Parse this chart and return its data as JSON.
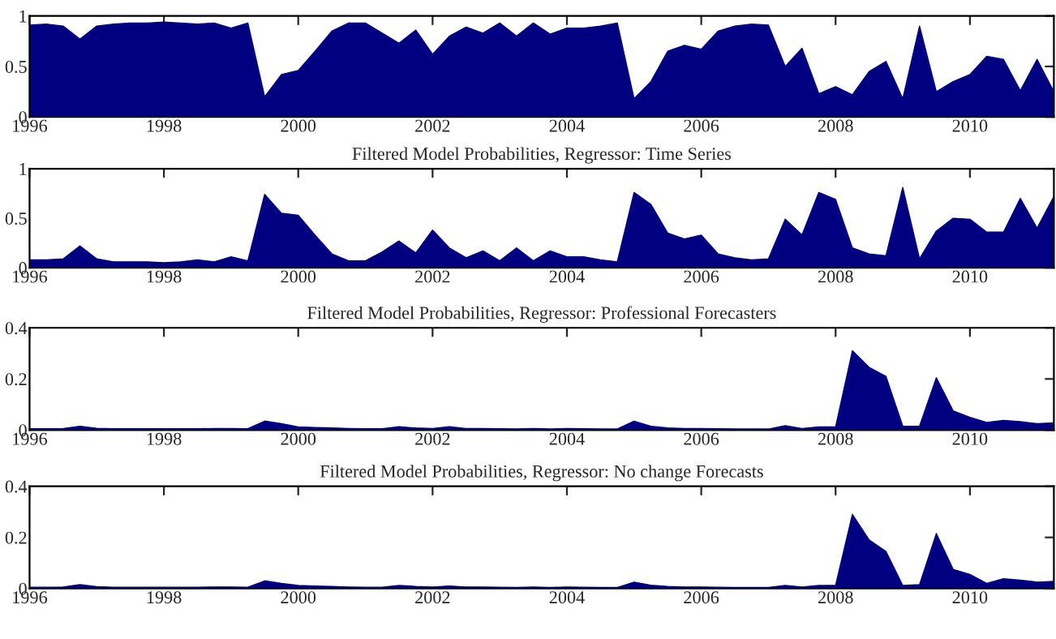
{
  "chart_data": [
    {
      "type": "area",
      "x": [
        1996.0,
        1996.25,
        1996.5,
        1996.75,
        1997.0,
        1997.25,
        1997.5,
        1997.75,
        1998.0,
        1998.25,
        1998.5,
        1998.75,
        1999.0,
        1999.25,
        1999.5,
        1999.75,
        2000.0,
        2000.25,
        2000.5,
        2000.75,
        2001.0,
        2001.25,
        2001.5,
        2001.75,
        2002.0,
        2002.25,
        2002.5,
        2002.75,
        2003.0,
        2003.25,
        2003.5,
        2003.75,
        2004.0,
        2004.25,
        2004.5,
        2004.75,
        2005.0,
        2005.25,
        2005.5,
        2005.75,
        2006.0,
        2006.25,
        2006.5,
        2006.75,
        2007.0,
        2007.25,
        2007.5,
        2007.75,
        2008.0,
        2008.25,
        2008.5,
        2008.75,
        2009.0,
        2009.25,
        2009.5,
        2009.75,
        2010.0,
        2010.25,
        2010.5,
        2010.75,
        2011.0,
        2011.25
      ],
      "series": [
        {
          "color": "#000080",
          "values": [
            0.91,
            0.92,
            0.9,
            0.77,
            0.9,
            0.92,
            0.93,
            0.93,
            0.94,
            0.93,
            0.92,
            0.93,
            0.88,
            0.93,
            0.2,
            0.42,
            0.46,
            0.65,
            0.85,
            0.93,
            0.93,
            0.83,
            0.73,
            0.86,
            0.62,
            0.8,
            0.89,
            0.83,
            0.93,
            0.8,
            0.93,
            0.82,
            0.88,
            0.88,
            0.9,
            0.93,
            0.18,
            0.35,
            0.65,
            0.71,
            0.67,
            0.85,
            0.9,
            0.92,
            0.91,
            0.5,
            0.68,
            0.23,
            0.3,
            0.22,
            0.45,
            0.55,
            0.18,
            0.9,
            0.25,
            0.35,
            0.42,
            0.6,
            0.57,
            0.26,
            0.57,
            0.25
          ]
        }
      ],
      "xlim": [
        1996,
        2011.25
      ],
      "xticks": [
        1996,
        1998,
        2000,
        2002,
        2004,
        2006,
        2008,
        2010
      ],
      "ylim": [
        0,
        1
      ],
      "yticks": [
        0,
        0.5,
        1
      ]
    },
    {
      "type": "area",
      "title": "Filtered Model Probabilities, Regressor: Time Series",
      "x": [
        1996.0,
        1996.25,
        1996.5,
        1996.75,
        1997.0,
        1997.25,
        1997.5,
        1997.75,
        1998.0,
        1998.25,
        1998.5,
        1998.75,
        1999.0,
        1999.25,
        1999.5,
        1999.75,
        2000.0,
        2000.25,
        2000.5,
        2000.75,
        2001.0,
        2001.25,
        2001.5,
        2001.75,
        2002.0,
        2002.25,
        2002.5,
        2002.75,
        2003.0,
        2003.25,
        2003.5,
        2003.75,
        2004.0,
        2004.25,
        2004.5,
        2004.75,
        2005.0,
        2005.25,
        2005.5,
        2005.75,
        2006.0,
        2006.25,
        2006.5,
        2006.75,
        2007.0,
        2007.25,
        2007.5,
        2007.75,
        2008.0,
        2008.25,
        2008.5,
        2008.75,
        2009.0,
        2009.25,
        2009.5,
        2009.75,
        2010.0,
        2010.25,
        2010.5,
        2010.75,
        2011.0,
        2011.25
      ],
      "series": [
        {
          "color": "#000080",
          "values": [
            0.08,
            0.08,
            0.09,
            0.22,
            0.09,
            0.06,
            0.06,
            0.06,
            0.05,
            0.06,
            0.08,
            0.06,
            0.11,
            0.07,
            0.74,
            0.55,
            0.53,
            0.33,
            0.14,
            0.07,
            0.07,
            0.16,
            0.27,
            0.15,
            0.38,
            0.2,
            0.1,
            0.17,
            0.07,
            0.2,
            0.07,
            0.17,
            0.11,
            0.11,
            0.08,
            0.06,
            0.76,
            0.64,
            0.35,
            0.29,
            0.33,
            0.14,
            0.1,
            0.08,
            0.09,
            0.49,
            0.33,
            0.76,
            0.69,
            0.2,
            0.14,
            0.12,
            0.81,
            0.09,
            0.37,
            0.5,
            0.49,
            0.36,
            0.36,
            0.7,
            0.4,
            0.72
          ]
        }
      ],
      "xlim": [
        1996,
        2011.25
      ],
      "xticks": [
        1996,
        1998,
        2000,
        2002,
        2004,
        2006,
        2008,
        2010
      ],
      "ylim": [
        0,
        1
      ],
      "yticks": [
        0,
        0.5,
        1
      ]
    },
    {
      "type": "area",
      "title": "Filtered Model Probabilities, Regressor: Professional Forecasters",
      "x": [
        1996.0,
        1996.25,
        1996.5,
        1996.75,
        1997.0,
        1997.25,
        1997.5,
        1997.75,
        1998.0,
        1998.25,
        1998.5,
        1998.75,
        1999.0,
        1999.25,
        1999.5,
        1999.75,
        2000.0,
        2000.25,
        2000.5,
        2000.75,
        2001.0,
        2001.25,
        2001.5,
        2001.75,
        2002.0,
        2002.25,
        2002.5,
        2002.75,
        2003.0,
        2003.25,
        2003.5,
        2003.75,
        2004.0,
        2004.25,
        2004.5,
        2004.75,
        2005.0,
        2005.25,
        2005.5,
        2005.75,
        2006.0,
        2006.25,
        2006.5,
        2006.75,
        2007.0,
        2007.25,
        2007.5,
        2007.75,
        2008.0,
        2008.25,
        2008.5,
        2008.75,
        2009.0,
        2009.25,
        2009.5,
        2009.75,
        2010.0,
        2010.25,
        2010.5,
        2010.75,
        2011.0,
        2011.25
      ],
      "series": [
        {
          "color": "#000080",
          "values": [
            0.005,
            0.005,
            0.006,
            0.015,
            0.007,
            0.005,
            0.005,
            0.005,
            0.005,
            0.005,
            0.005,
            0.006,
            0.006,
            0.005,
            0.035,
            0.025,
            0.012,
            0.01,
            0.008,
            0.006,
            0.005,
            0.005,
            0.013,
            0.008,
            0.006,
            0.013,
            0.006,
            0.006,
            0.005,
            0.004,
            0.006,
            0.004,
            0.006,
            0.005,
            0.004,
            0.004,
            0.035,
            0.015,
            0.008,
            0.006,
            0.006,
            0.005,
            0.004,
            0.004,
            0.004,
            0.017,
            0.006,
            0.012,
            0.012,
            0.31,
            0.245,
            0.21,
            0.015,
            0.015,
            0.205,
            0.075,
            0.05,
            0.03,
            0.038,
            0.033,
            0.025,
            0.028
          ]
        }
      ],
      "xlim": [
        1996,
        2011.25
      ],
      "xticks": [
        1996,
        1998,
        2000,
        2002,
        2004,
        2006,
        2008,
        2010
      ],
      "ylim": [
        0,
        0.4
      ],
      "yticks": [
        0,
        0.2,
        0.4
      ]
    },
    {
      "type": "area",
      "title": "Filtered Model Probabilities, Regressor: No change Forecasts",
      "x": [
        1996.0,
        1996.25,
        1996.5,
        1996.75,
        1997.0,
        1997.25,
        1997.5,
        1997.75,
        1998.0,
        1998.25,
        1998.5,
        1998.75,
        1999.0,
        1999.25,
        1999.5,
        1999.75,
        2000.0,
        2000.25,
        2000.5,
        2000.75,
        2001.0,
        2001.25,
        2001.5,
        2001.75,
        2002.0,
        2002.25,
        2002.5,
        2002.75,
        2003.0,
        2003.25,
        2003.5,
        2003.75,
        2004.0,
        2004.25,
        2004.5,
        2004.75,
        2005.0,
        2005.25,
        2005.5,
        2005.75,
        2006.0,
        2006.25,
        2006.5,
        2006.75,
        2007.0,
        2007.25,
        2007.5,
        2007.75,
        2008.0,
        2008.25,
        2008.5,
        2008.75,
        2009.0,
        2009.25,
        2009.5,
        2009.75,
        2010.0,
        2010.25,
        2010.5,
        2010.75,
        2011.0,
        2011.25
      ],
      "series": [
        {
          "color": "#000080",
          "values": [
            0.005,
            0.005,
            0.006,
            0.015,
            0.007,
            0.005,
            0.005,
            0.005,
            0.005,
            0.005,
            0.005,
            0.006,
            0.006,
            0.005,
            0.03,
            0.02,
            0.012,
            0.01,
            0.008,
            0.006,
            0.005,
            0.005,
            0.012,
            0.008,
            0.006,
            0.01,
            0.006,
            0.006,
            0.005,
            0.004,
            0.006,
            0.004,
            0.006,
            0.005,
            0.004,
            0.004,
            0.025,
            0.013,
            0.008,
            0.006,
            0.006,
            0.005,
            0.004,
            0.004,
            0.004,
            0.012,
            0.006,
            0.012,
            0.012,
            0.29,
            0.19,
            0.145,
            0.012,
            0.015,
            0.215,
            0.075,
            0.055,
            0.02,
            0.038,
            0.033,
            0.025,
            0.028
          ]
        }
      ],
      "xlim": [
        1996,
        2011.25
      ],
      "xticks": [
        1996,
        1998,
        2000,
        2002,
        2004,
        2006,
        2008,
        2010
      ],
      "ylim": [
        0,
        0.4
      ],
      "yticks": [
        0,
        0.2,
        0.4
      ]
    }
  ]
}
